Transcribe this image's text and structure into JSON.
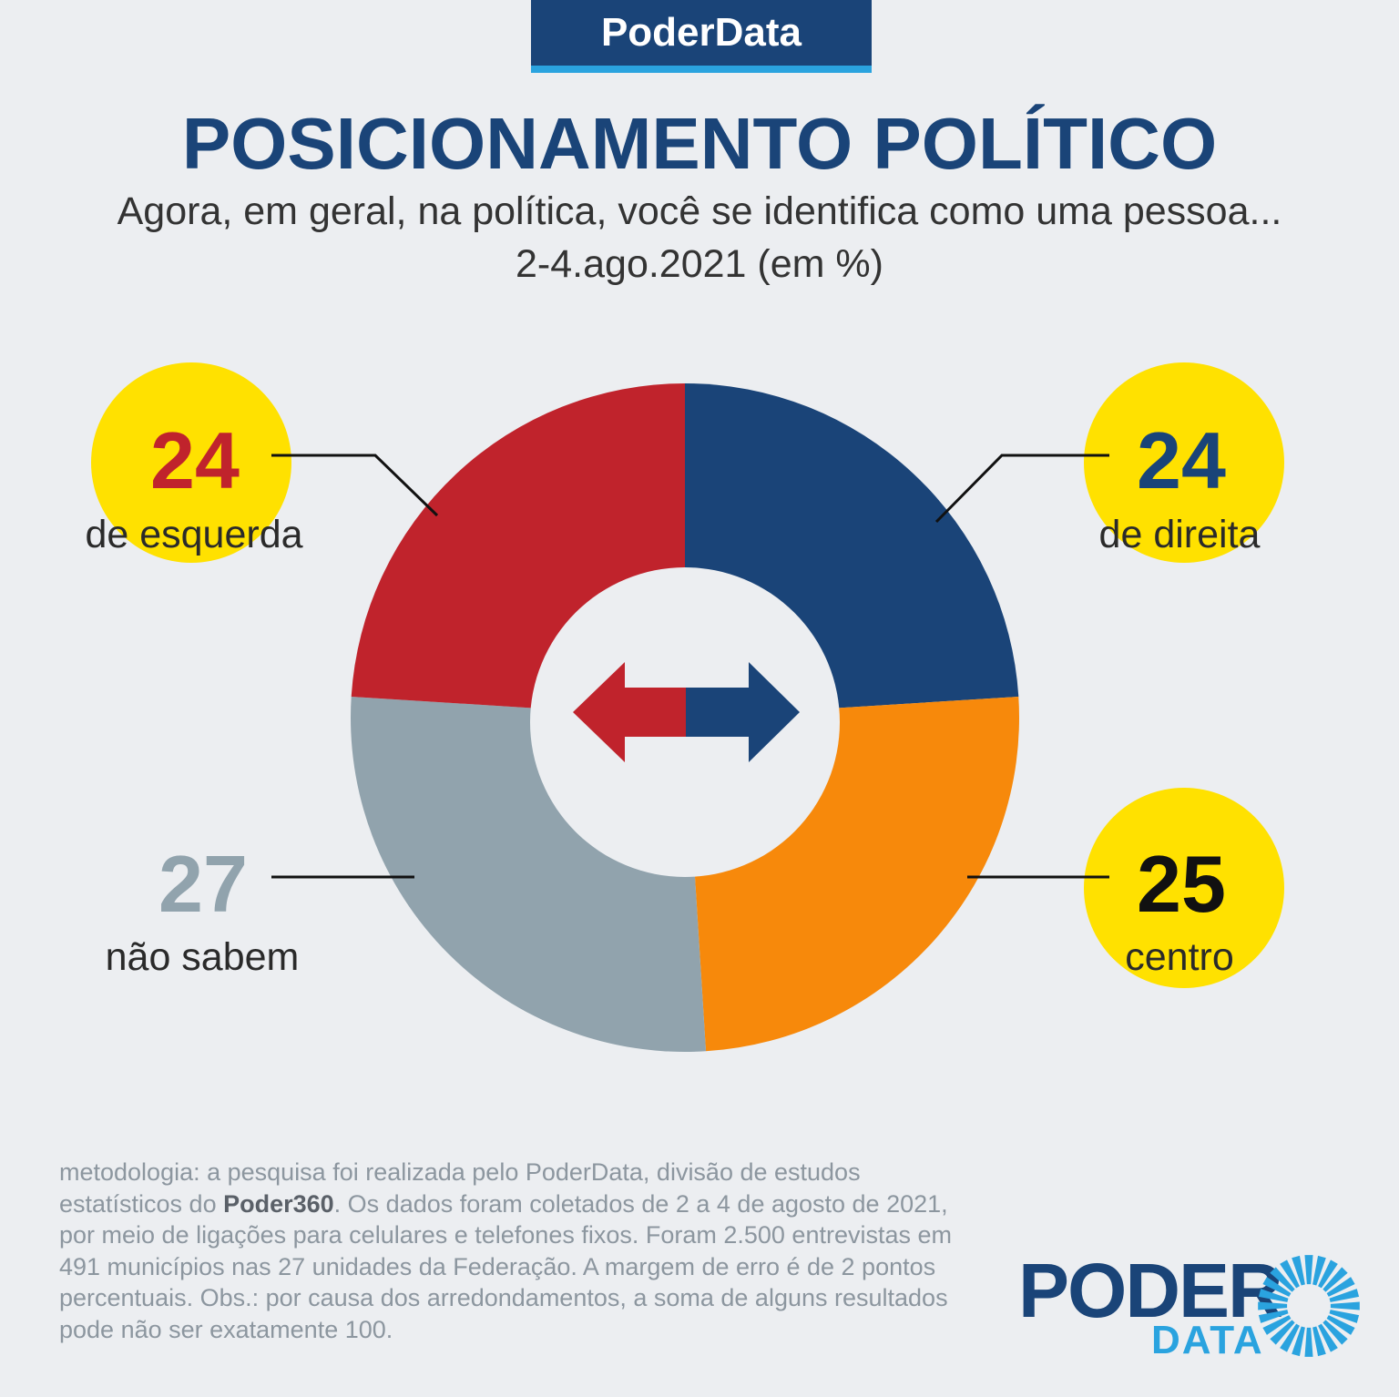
{
  "brand": {
    "tab_label": "PoderData"
  },
  "header": {
    "title": "POSICIONAMENTO POLÍTICO",
    "question": "Agora, em geral, na política, você se identifica como uma pessoa...",
    "date": "2-4.ago.2021 (em %)"
  },
  "chart_data": {
    "type": "pie",
    "variant": "donut",
    "title": "POSICIONAMENTO POLÍTICO",
    "unit": "%",
    "slices": [
      {
        "label": "de direita",
        "value": 24,
        "color": "#1a4478",
        "value_color": "#1a4478"
      },
      {
        "label": "centro",
        "value": 25,
        "color": "#f7890b",
        "value_color": "#111111"
      },
      {
        "label": "não sabem",
        "value": 27,
        "color": "#91a3ad",
        "value_color": "#91a3ad"
      },
      {
        "label": "de esquerda",
        "value": 24,
        "color": "#c0232c",
        "value_color": "#c0232c"
      }
    ],
    "highlight_color": "#ffe100",
    "center_icon": "left-right-arrow-icon"
  },
  "footer": {
    "methodology_prefix": "metodologia: a pesquisa foi realizada pelo PoderData, divisão de estudos estatísticos do ",
    "methodology_bold": "Poder360",
    "methodology_suffix": ". Os dados foram coletados de 2 a 4 de agosto de 2021, por meio de ligações para celulares e telefones fixos. Foram 2.500 entrevistas em 491 municípios nas 27 unidades da Federação. A margem de erro é de 2 pontos percentuais. Obs.: por causa dos arredondamentos, a soma de alguns resultados pode não ser exatamente 100.",
    "logo_top": "PODER",
    "logo_bottom": "DATA",
    "logo_icon": "sunburst-icon"
  }
}
